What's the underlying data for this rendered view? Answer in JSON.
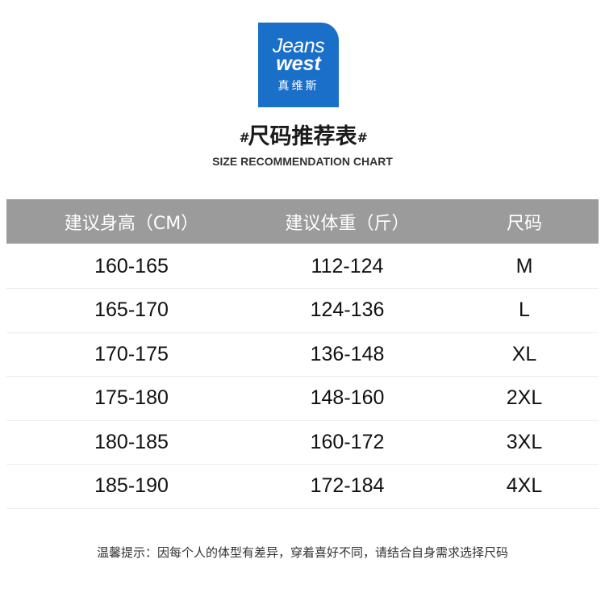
{
  "logo": {
    "line1": "Jeans",
    "line2": "west",
    "chinese": "真维斯",
    "color": "#1a6fc9"
  },
  "title": {
    "prefix": "#",
    "text": "尺码推荐表",
    "suffix": "#"
  },
  "subtitle": "SIZE RECOMMENDATION CHART",
  "table": {
    "header_color": "#9b9b9b",
    "columns": [
      "建议身高（CM）",
      "建议体重（斤）",
      "尺码"
    ],
    "rows": [
      [
        "160-165",
        "112-124",
        "M"
      ],
      [
        "165-170",
        "124-136",
        "L"
      ],
      [
        "170-175",
        "136-148",
        "XL"
      ],
      [
        "175-180",
        "148-160",
        "2XL"
      ],
      [
        "180-185",
        "160-172",
        "3XL"
      ],
      [
        "185-190",
        "172-184",
        "4XL"
      ]
    ]
  },
  "note": "温馨提示：因每个人的体型有差异，穿着喜好不同，请结合自身需求选择尺码"
}
